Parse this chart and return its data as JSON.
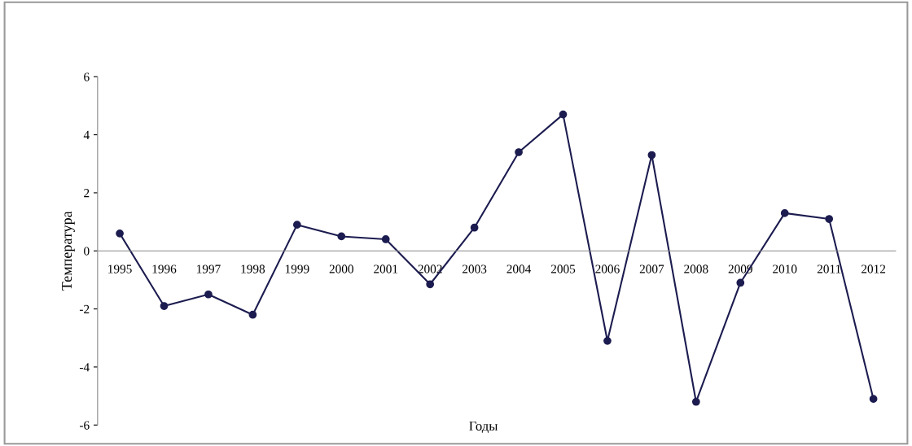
{
  "chart_data": {
    "type": "line",
    "xlabel": "Годы",
    "ylabel": "Температура",
    "categories": [
      "1995",
      "1996",
      "1997",
      "1998",
      "1999",
      "2000",
      "2001",
      "2002",
      "2003",
      "2004",
      "2005",
      "2006",
      "2007",
      "2008",
      "2009",
      "2010",
      "2011",
      "2012"
    ],
    "series": [
      {
        "color": "#1c1c50",
        "values": [
          0.6,
          -1.9,
          -1.5,
          -2.2,
          0.9,
          0.5,
          0.4,
          -1.15,
          0.8,
          3.4,
          4.7,
          -3.1,
          3.3,
          -5.2,
          -1.1,
          1.3,
          1.1,
          -5.1
        ]
      }
    ],
    "ylim": [
      -6,
      6
    ],
    "yticks": [
      -6,
      -4,
      -2,
      0,
      2,
      4,
      6
    ],
    "marker": "circle",
    "line_style": "solid",
    "grid": false,
    "legend": false
  }
}
